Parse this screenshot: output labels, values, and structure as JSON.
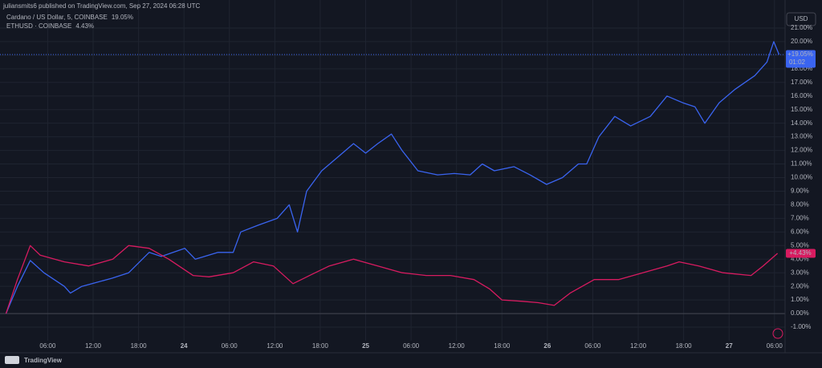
{
  "header": {
    "publisher": "juliansmits6 published on TradingView.com, Sep 27, 2024 06:28 UTC",
    "brand": "TradingView",
    "currency": "USD"
  },
  "chart_data": {
    "type": "line",
    "series": [
      {
        "name": "Cardano / US Dollar, 5, COINBASE",
        "legend_value": "19.05%",
        "badge": "+19.05%",
        "countdown": "01:02",
        "color": "#3a64f0",
        "x": [
          0.5,
          2,
          3.7,
          5.5,
          8.2,
          9,
          10.5,
          12.5,
          14.5,
          16.7,
          19.4,
          21,
          24.1,
          25.5,
          28.5,
          30.5,
          31.5,
          33.8,
          36.3,
          37.9,
          39,
          40.2,
          42.2,
          44.3,
          46.4,
          48,
          49.6,
          51.4,
          52.8,
          54.9,
          57.5,
          59.7,
          61.8,
          63.4,
          65,
          67.6,
          69.7,
          71.9,
          74,
          76.1,
          77.2,
          78.8,
          80.9,
          83,
          85.6,
          87.8,
          89.9,
          91.5,
          92.8,
          94.7,
          96.8,
          99.4,
          101,
          101.9,
          102.6
        ],
        "values": [
          0,
          2,
          3.9,
          3,
          2,
          1.5,
          2,
          2.3,
          2.6,
          3,
          4.5,
          4.2,
          4.8,
          4,
          4.5,
          4.5,
          6,
          6.5,
          7,
          8,
          6,
          9,
          10.5,
          11.5,
          12.5,
          11.8,
          12.5,
          13.2,
          12,
          10.5,
          10.2,
          10.3,
          10.2,
          11,
          10.5,
          10.8,
          10.2,
          9.5,
          10,
          11,
          11,
          13,
          14.5,
          13.8,
          14.5,
          16,
          15.5,
          15.2,
          14,
          15.5,
          16.5,
          17.5,
          18.5,
          20,
          19.05
        ]
      },
      {
        "name": "ETHUSD · COINBASE",
        "legend_value": "4.43%",
        "badge": "+4.43%",
        "color": "#d81b60",
        "x": [
          0.5,
          2,
          3.7,
          5,
          8.2,
          11.4,
          14.6,
          16.7,
          19.4,
          22,
          25.2,
          27.3,
          30.5,
          33.2,
          35.8,
          38.4,
          40.6,
          43.2,
          46.4,
          49.6,
          52.8,
          56,
          59.2,
          62.3,
          64.4,
          66,
          68.7,
          70.8,
          72.9,
          75,
          78.2,
          81.4,
          84.6,
          87.8,
          89.4,
          92,
          95.2,
          98.9,
          100.5,
          102.4
        ],
        "values": [
          0,
          2.5,
          5,
          4.3,
          3.8,
          3.5,
          4,
          5,
          4.8,
          4,
          2.8,
          2.7,
          3,
          3.8,
          3.5,
          2.2,
          2.8,
          3.5,
          4,
          3.5,
          3,
          2.8,
          2.8,
          2.5,
          1.8,
          1,
          0.9,
          0.8,
          0.6,
          1.5,
          2.5,
          2.5,
          3,
          3.5,
          3.8,
          3.5,
          3,
          2.8,
          3.5,
          4.43
        ]
      }
    ],
    "xlim": [
      -0.3,
      103.4
    ],
    "xticks": [
      {
        "value": 6,
        "label": "06:00"
      },
      {
        "value": 12,
        "label": "12:00"
      },
      {
        "value": 18,
        "label": "18:00"
      },
      {
        "value": 24,
        "label": "24"
      },
      {
        "value": 30,
        "label": "06:00"
      },
      {
        "value": 36,
        "label": "12:00"
      },
      {
        "value": 42,
        "label": "18:00"
      },
      {
        "value": 48,
        "label": "25"
      },
      {
        "value": 54,
        "label": "06:00"
      },
      {
        "value": 60,
        "label": "12:00"
      },
      {
        "value": 66,
        "label": "18:00"
      },
      {
        "value": 72,
        "label": "26"
      },
      {
        "value": 78,
        "label": "06:00"
      },
      {
        "value": 84,
        "label": "12:00"
      },
      {
        "value": 90,
        "label": "18:00"
      },
      {
        "value": 96,
        "label": "27"
      },
      {
        "value": 102,
        "label": "06:00"
      }
    ],
    "ylim": [
      -2,
      22
    ],
    "yticks": [
      {
        "value": -1,
        "label": "-1.00%"
      },
      {
        "value": 0,
        "label": "0.00%"
      },
      {
        "value": 1,
        "label": "1.00%"
      },
      {
        "value": 2,
        "label": "2.00%"
      },
      {
        "value": 3,
        "label": "3.00%"
      },
      {
        "value": 4,
        "label": "4.00%"
      },
      {
        "value": 5,
        "label": "5.00%"
      },
      {
        "value": 6,
        "label": "6.00%"
      },
      {
        "value": 7,
        "label": "7.00%"
      },
      {
        "value": 8,
        "label": "8.00%"
      },
      {
        "value": 9,
        "label": "9.00%"
      },
      {
        "value": 10,
        "label": "10.00%"
      },
      {
        "value": 11,
        "label": "11.00%"
      },
      {
        "value": 12,
        "label": "12.00%"
      },
      {
        "value": 13,
        "label": "13.00%"
      },
      {
        "value": 14,
        "label": "14.00%"
      },
      {
        "value": 15,
        "label": "15.00%"
      },
      {
        "value": 16,
        "label": "16.00%"
      },
      {
        "value": 17,
        "label": "17.00%"
      },
      {
        "value": 18,
        "label": "18.00%"
      },
      {
        "value": 19,
        "label": "19.00%"
      },
      {
        "value": 20,
        "label": "20.00%"
      },
      {
        "value": 21,
        "label": "21.00%"
      }
    ],
    "grid": true
  }
}
